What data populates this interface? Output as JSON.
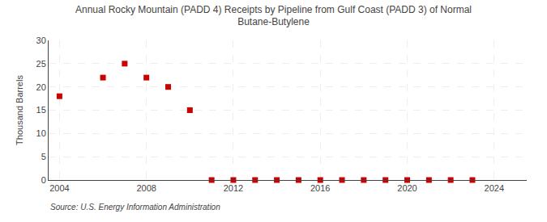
{
  "chart_data": {
    "type": "scatter",
    "title": "Annual Rocky Mountain (PADD 4) Receipts by Pipeline from Gulf Coast (PADD 3) of Normal\nButane-Butylene",
    "ylabel": "Thousand Barrels",
    "annotations": [
      "Source: U.S. Energy Information Administration"
    ],
    "x": [
      2004,
      2006,
      2007,
      2008,
      2009,
      2010,
      2011,
      2012,
      2013,
      2014,
      2015,
      2016,
      2017,
      2018,
      2019,
      2020,
      2021,
      2022,
      2023
    ],
    "values": [
      18,
      22,
      25,
      22,
      20,
      15,
      0,
      0,
      0,
      0,
      0,
      0,
      0,
      0,
      0,
      0,
      0,
      0,
      0
    ],
    "color": "#cc0000",
    "marker": "square",
    "xlim": [
      2003.5,
      2025.5
    ],
    "ylim": [
      0,
      30
    ],
    "xticks": [
      2004,
      2008,
      2012,
      2016,
      2020,
      2024
    ],
    "yticks": [
      0,
      5,
      10,
      15,
      20,
      25,
      30
    ],
    "grid": true
  }
}
